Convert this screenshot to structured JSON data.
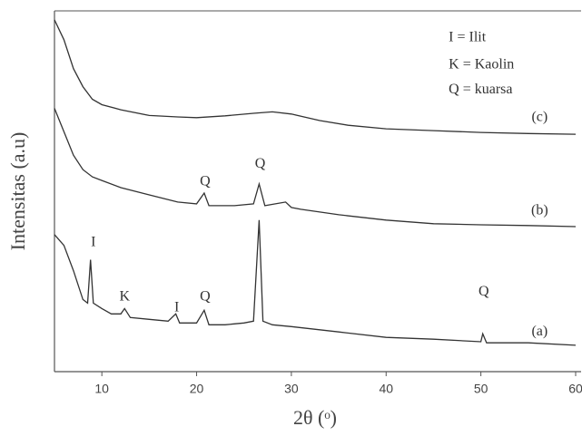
{
  "chart_data": {
    "type": "line",
    "x_label": "2θ (ᵒ)",
    "y_label": "Intensitas (a.u)",
    "xlim": [
      5,
      60
    ],
    "ylim": [
      0,
      100
    ],
    "xticks": [
      10,
      20,
      30,
      40,
      50,
      60
    ],
    "series": [
      {
        "color": "#333333",
        "x": [
          5,
          6,
          7,
          8,
          8.5,
          8.8,
          9.1,
          10,
          11,
          12,
          12.4,
          13,
          15,
          17,
          17.8,
          18.2,
          20,
          20.8,
          21.3,
          23,
          25,
          26,
          26.6,
          27,
          28,
          30,
          35,
          40,
          45,
          50,
          50.2,
          50.6,
          55,
          60
        ],
        "values": [
          38,
          35,
          28,
          20,
          19,
          31,
          19,
          17.5,
          16,
          16,
          17.5,
          15,
          14.5,
          14,
          16,
          13.5,
          13.5,
          17,
          13,
          13,
          13.5,
          14,
          42,
          14,
          13,
          12.5,
          11,
          9.5,
          9,
          8.3,
          10.5,
          8,
          8,
          7.3
        ]
      },
      {
        "color": "#333333",
        "x": [
          5,
          6,
          7,
          8,
          9,
          10,
          12,
          15,
          18,
          20,
          20.8,
          21.3,
          24,
          26,
          26.6,
          27.2,
          29.4,
          30,
          31,
          35,
          40,
          45,
          50,
          55,
          60
        ],
        "values": [
          73,
          66.5,
          60,
          56,
          54,
          53,
          51,
          49,
          47,
          46.5,
          49.5,
          46,
          46,
          46.5,
          52,
          46,
          47,
          45.5,
          45,
          43.5,
          42,
          41,
          40.7,
          40.5,
          40.2
        ]
      },
      {
        "color": "#333333",
        "x": [
          5,
          6,
          7,
          8,
          9,
          10,
          12,
          15,
          18,
          20,
          23,
          26,
          28,
          30,
          33,
          36,
          40,
          45,
          50,
          55,
          60
        ],
        "values": [
          97.5,
          92,
          84,
          79,
          75.5,
          74,
          72.6,
          71,
          70.6,
          70.4,
          70.9,
          71.6,
          72,
          71.4,
          69.6,
          68.3,
          67.3,
          66.8,
          66.3,
          66,
          65.8
        ]
      }
    ],
    "annotations": [
      {
        "text": "I",
        "x": 9.1,
        "y": 35.7
      },
      {
        "text": "K",
        "x": 12.4,
        "y": 20.6
      },
      {
        "text": "I",
        "x": 17.9,
        "y": 17.6
      },
      {
        "text": "Q",
        "x": 20.9,
        "y": 20.6
      },
      {
        "text": "Q",
        "x": 50.3,
        "y": 22
      },
      {
        "text": "Q",
        "x": 20.9,
        "y": 52.5
      },
      {
        "text": "Q",
        "x": 26.7,
        "y": 57.5
      },
      {
        "text": "(a)",
        "x": 56.2,
        "y": 11
      },
      {
        "text": "(b)",
        "x": 56.2,
        "y": 44.5
      },
      {
        "text": "(c)",
        "x": 56.2,
        "y": 70.4
      },
      {
        "text": "I = Ilit",
        "x": 46.6,
        "y": 92.5
      },
      {
        "text": "K = Kaolin",
        "x": 46.6,
        "y": 85
      },
      {
        "text": "Q = kuarsa",
        "x": 46.6,
        "y": 78
      }
    ]
  }
}
